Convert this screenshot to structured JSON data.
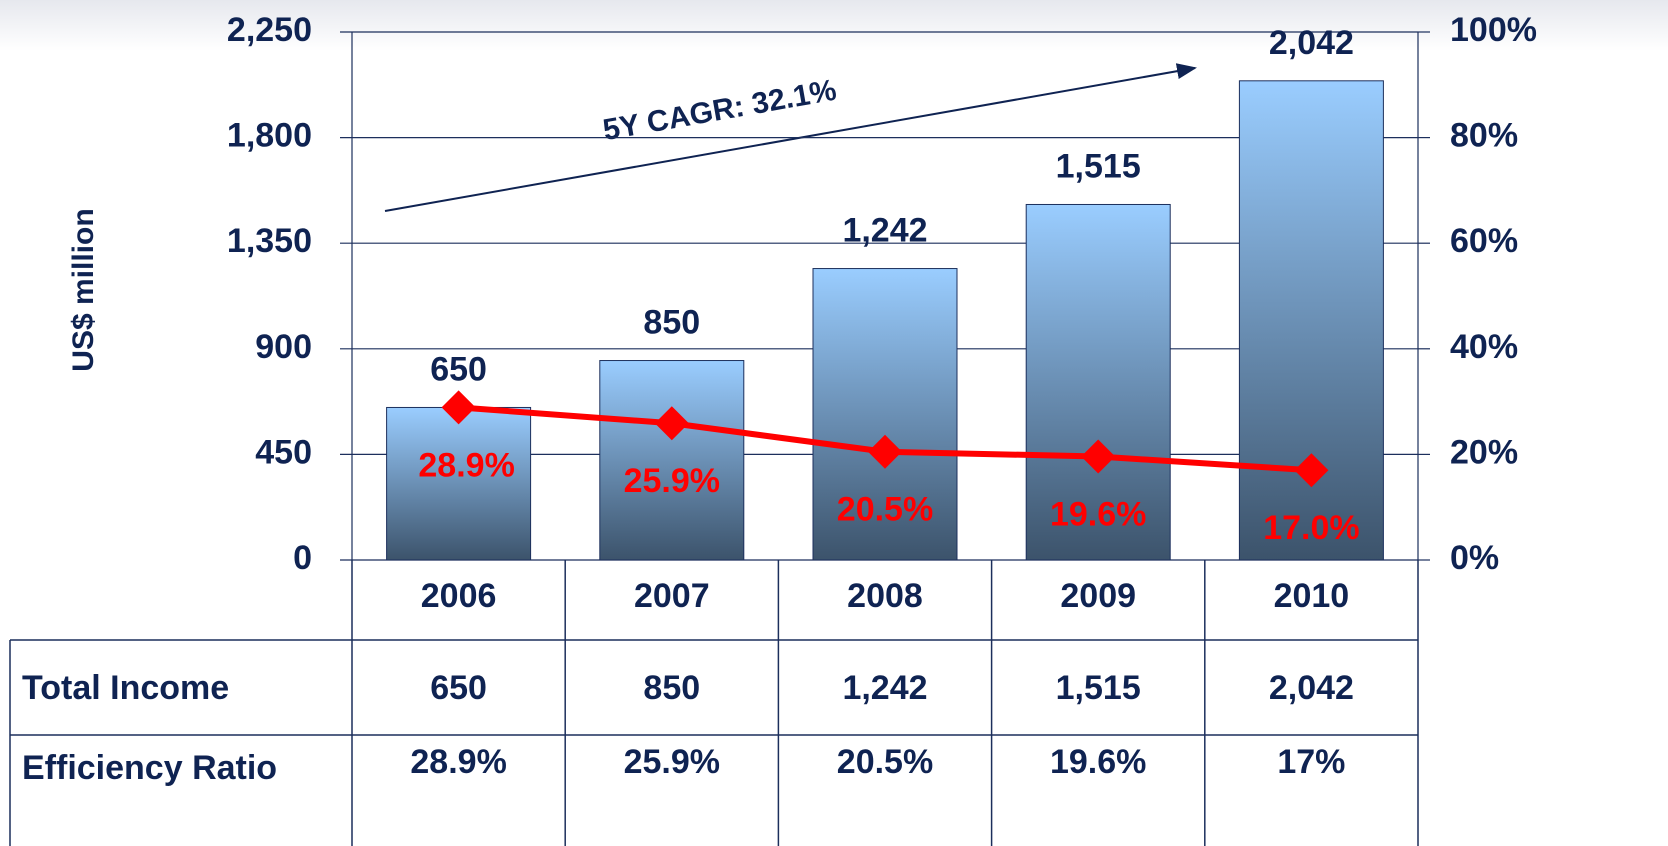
{
  "chart_data": {
    "type": "bar_line",
    "y_axis_label": "US$ million",
    "annotation": "5Y CAGR: 32.1%",
    "categories": [
      "2006",
      "2007",
      "2008",
      "2009",
      "2010"
    ],
    "series": [
      {
        "name": "Total Income",
        "type": "bar",
        "color": "#9acdff",
        "values": [
          650,
          850,
          1242,
          1515,
          2042
        ],
        "value_labels": [
          "650",
          "850",
          "1,242",
          "1,515",
          "2,042"
        ]
      },
      {
        "name": "Efficiency Ratio",
        "type": "line",
        "axis": "y2",
        "color": "#ff0000",
        "values": [
          28.9,
          25.9,
          20.5,
          19.6,
          17.0
        ],
        "value_labels": [
          "28.9%",
          "25.9%",
          "20.5%",
          "19.6%",
          "17.0%"
        ]
      }
    ],
    "ylim": [
      0,
      2250
    ],
    "yticks": [
      0,
      450,
      900,
      {
        "value": 1350,
        "label": "1,350"
      },
      {
        "value": 1800,
        "label": "1,800"
      },
      {
        "value": 2250,
        "label": "2,250"
      }
    ],
    "y2lim": [
      0,
      100
    ],
    "y2ticks": [
      {
        "value": 0,
        "label": "0%"
      },
      {
        "value": 20,
        "label": "20%"
      },
      {
        "value": 40,
        "label": "40%"
      },
      {
        "value": 60,
        "label": "60%"
      },
      {
        "value": 80,
        "label": "80%"
      },
      {
        "value": 100,
        "label": "100%"
      }
    ],
    "grid": true
  },
  "table": {
    "rows": [
      [
        "Total Income",
        "650",
        "850",
        "1,242",
        "1,515",
        "2,042"
      ],
      [
        "Efficiency Ratio",
        "28.9%",
        "25.9%",
        "20.5%",
        "19.6%",
        "17%"
      ]
    ]
  }
}
